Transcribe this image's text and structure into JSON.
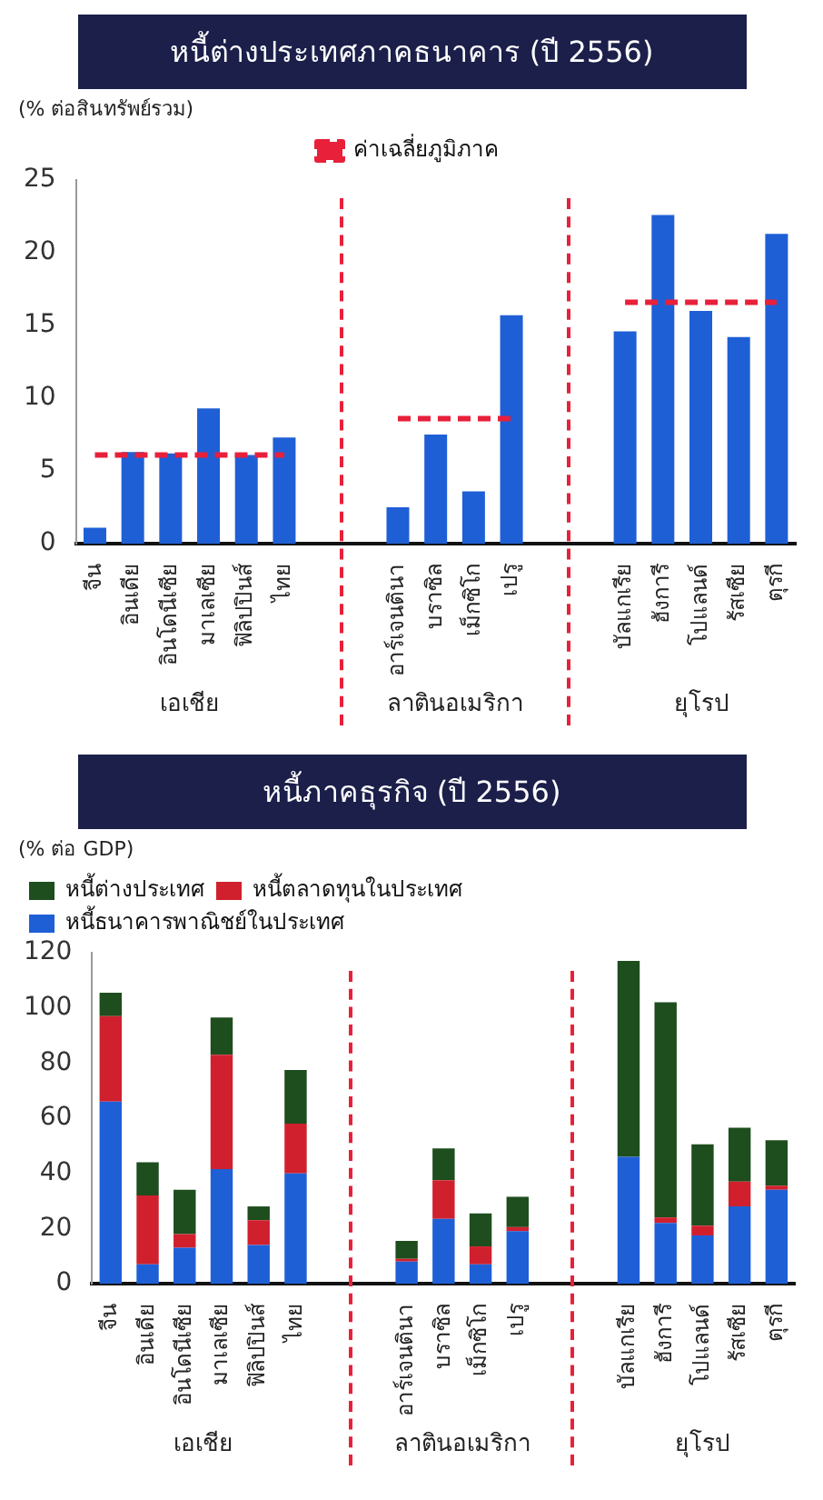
{
  "chart_data": [
    {
      "type": "bar",
      "title": "หนี้ต่างประเทศภาคธนาคาร (ปี 2556)",
      "ylabel": "(% ต่อสินทรัพย์รวม)",
      "categories": [
        "จีน",
        "อินเดีย",
        "อินโดนีเซีย",
        "มาเลเซีย",
        "ฟิลิปปินส์",
        "ไทย",
        null,
        null,
        "อาร์เจนตินา",
        "บราซิล",
        "เม็กซิโก",
        "เปรู",
        null,
        null,
        "บัลแกเรีย",
        "ฮังการี",
        "โปแลนด์",
        "รัสเซีย",
        "ตุรกี"
      ],
      "series": [
        {
          "color": "#1f5fd6",
          "values": [
            1.1,
            6.3,
            6.2,
            9.3,
            6.1,
            7.3,
            null,
            null,
            2.5,
            7.5,
            3.6,
            15.7,
            null,
            null,
            14.6,
            22.6,
            16.0,
            14.2,
            21.3
          ]
        },
        {
          "type": "line",
          "name": "ค่าเฉลี่ยภูมิภาค",
          "color": "#e8203a",
          "values": [
            6.1,
            6.1,
            6.1,
            6.1,
            6.1,
            6.1,
            null,
            null,
            8.6,
            8.6,
            8.6,
            8.6,
            null,
            null,
            16.6,
            16.6,
            16.6,
            16.6,
            16.6
          ]
        }
      ],
      "line_style": "dashed",
      "marker": "none",
      "ylim": [
        0,
        25
      ],
      "yticks": [
        0,
        5,
        10,
        15,
        20,
        25
      ],
      "grid": false,
      "legend": "top",
      "annotations": [
        "เอเชีย",
        "ลาตินอเมริกา",
        "ยุโรป"
      ]
    },
    {
      "type": "bar",
      "title": "หนี้ภาคธุรกิจ (ปี 2556)",
      "ylabel": "(% ต่อ GDP)",
      "categories": [
        "จีน",
        "อินเดีย",
        "อินโดนีเซีย",
        "มาเลเซีย",
        "ฟิลิปปินส์",
        "ไทย",
        null,
        null,
        "อาร์เจนตินา",
        "บราซิล",
        "เม็กซิโก",
        "เปรู",
        null,
        null,
        "บัลแกเรีย",
        "ฮังการี",
        "โปแลนด์",
        "รัสเซีย",
        "ตุรกี"
      ],
      "stacked": true,
      "series": [
        {
          "name": "หนี้ธนาคารพาณิชย์ในประเทศ",
          "color": "#1f5fd6",
          "values": [
            66,
            7,
            13,
            41.5,
            14,
            40,
            null,
            null,
            8,
            23.5,
            7,
            19,
            null,
            null,
            46,
            22,
            17.5,
            28,
            34
          ]
        },
        {
          "name": "หนี้ตลาดทุนในประเทศ",
          "color": "#d0202e",
          "values": [
            31,
            25,
            5,
            41.5,
            9,
            18,
            null,
            null,
            1,
            14,
            6.5,
            1.5,
            null,
            null,
            0,
            2,
            3.5,
            9,
            1.5
          ]
        },
        {
          "name": "หนี้ต่างประเทศ",
          "color": "#1e4d1e",
          "values": [
            8.5,
            12,
            16,
            13.5,
            5,
            19.5,
            null,
            null,
            6.5,
            11.5,
            12,
            11,
            null,
            null,
            71,
            78,
            29.5,
            19.5,
            16.5
          ]
        }
      ],
      "ylim": [
        0,
        120
      ],
      "yticks": [
        0,
        20,
        40,
        60,
        80,
        100,
        120
      ],
      "grid": false,
      "legend": "top left",
      "annotations": [
        "เอเชีย",
        "ลาตินอเมริกา",
        "ยุโรป"
      ]
    }
  ]
}
